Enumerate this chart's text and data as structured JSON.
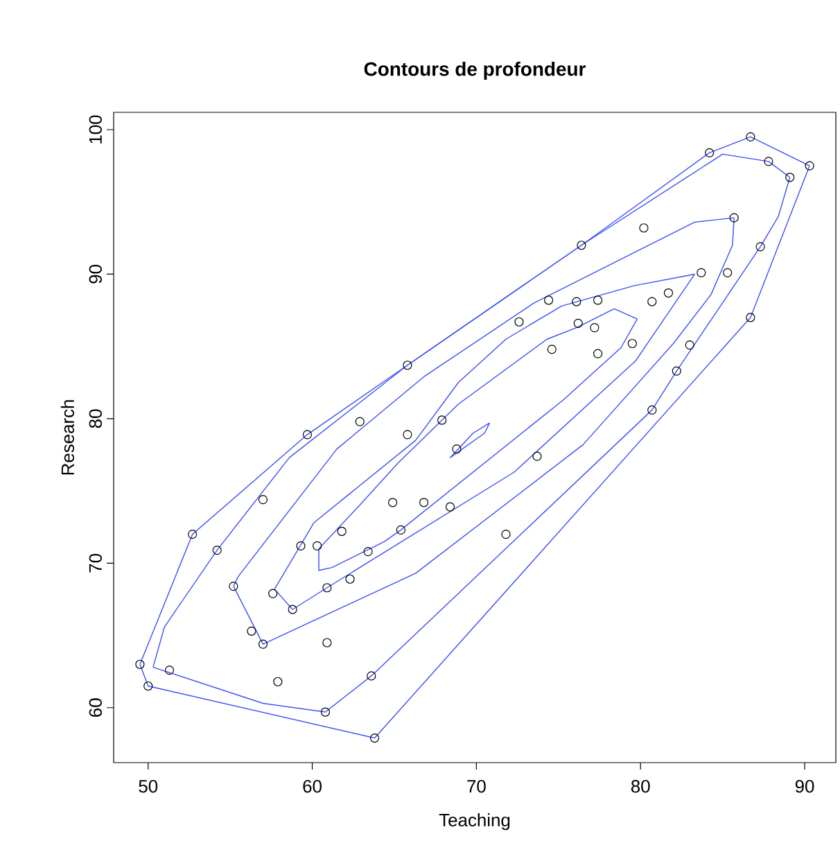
{
  "chart_data": {
    "type": "line",
    "title": "Contours de profondeur",
    "xlabel": "Teaching",
    "ylabel": "Research",
    "xlim": [
      47.9,
      91.9
    ],
    "ylim": [
      56.2,
      101.2
    ],
    "xticks": [
      50,
      60,
      70,
      80,
      90
    ],
    "yticks": [
      60,
      70,
      80,
      90,
      100
    ],
    "grid": false,
    "marker": "none",
    "series": [
      {
        "type": "scatter",
        "marker": "circle",
        "color": "#000000",
        "x": [
          86.7,
          84.2,
          87.8,
          90.3,
          89.1,
          85.7,
          80.2,
          76.4,
          87.3,
          83.7,
          85.3,
          81.7,
          74.4,
          76.1,
          77.4,
          80.7,
          86.7,
          72.6,
          76.2,
          77.2,
          79.5,
          83.0,
          74.6,
          77.4,
          82.2,
          65.8,
          67.9,
          62.9,
          80.7,
          59.7,
          65.8,
          68.8,
          73.7,
          57.0,
          64.9,
          66.8,
          68.4,
          65.4,
          61.8,
          71.8,
          52.7,
          59.3,
          60.3,
          63.4,
          54.2,
          62.3,
          60.9,
          55.2,
          57.6,
          58.8,
          56.3,
          57.0,
          60.9,
          49.5,
          51.3,
          57.9,
          63.6,
          50.0,
          60.8,
          63.8
        ],
        "values": [
          99.5,
          98.4,
          97.8,
          97.5,
          96.7,
          93.9,
          93.2,
          92.0,
          91.9,
          90.1,
          90.1,
          88.7,
          88.2,
          88.1,
          88.2,
          88.1,
          87.0,
          86.7,
          86.6,
          86.3,
          85.2,
          85.1,
          84.8,
          84.5,
          83.3,
          83.7,
          79.9,
          79.8,
          80.6,
          78.9,
          78.9,
          77.9,
          77.4,
          74.4,
          74.2,
          74.2,
          73.9,
          72.3,
          72.2,
          72.0,
          72.0,
          71.2,
          71.2,
          70.8,
          70.9,
          68.9,
          68.3,
          68.4,
          67.9,
          66.8,
          65.3,
          64.4,
          64.5,
          63.0,
          62.6,
          61.8,
          62.2,
          61.5,
          59.7,
          57.9
        ]
      },
      {
        "color": "#3a4ff5",
        "x": [
          49.5,
          52.7,
          59.7,
          65.8,
          76.4,
          84.2,
          86.7,
          90.3
        ],
        "values": [
          63.0,
          72.0,
          78.9,
          83.7,
          92.0,
          98.4,
          99.5,
          97.5
        ]
      },
      {
        "color": "#3a4ff5",
        "x": [
          49.5,
          50.0,
          63.8,
          86.7,
          90.3
        ],
        "values": [
          63.0,
          61.5,
          57.9,
          87.0,
          97.5
        ]
      },
      {
        "color": "#3a4ff5",
        "x": [
          50.3,
          51.0,
          54.2,
          58.6,
          65.8,
          76.4,
          85.0,
          87.8,
          89.1
        ],
        "values": [
          62.8,
          65.6,
          70.9,
          77.3,
          83.7,
          92.0,
          98.3,
          97.8,
          96.7
        ]
      },
      {
        "color": "#3a4ff5",
        "x": [
          50.3,
          57.0,
          60.8,
          63.6,
          80.7,
          82.2,
          87.3,
          88.4,
          89.1
        ],
        "values": [
          62.8,
          60.3,
          59.7,
          62.2,
          80.6,
          83.3,
          91.9,
          94.0,
          96.7
        ]
      },
      {
        "color": "#3a4ff5",
        "x": [
          55.2,
          55.5,
          61.5,
          66.8,
          73.5,
          83.3,
          85.7
        ],
        "values": [
          68.4,
          69.1,
          77.9,
          82.9,
          88.0,
          93.6,
          93.9
        ]
      },
      {
        "color": "#3a4ff5",
        "x": [
          55.2,
          57.0,
          66.3,
          76.5,
          82.0,
          84.3,
          85.6,
          85.7
        ],
        "values": [
          68.4,
          64.4,
          69.3,
          78.2,
          85.2,
          88.6,
          92.0,
          93.9
        ]
      },
      {
        "color": "#3a4ff5",
        "x": [
          57.7,
          60.1,
          66.3,
          68.9,
          71.8,
          75.2,
          79.6,
          83.3
        ],
        "values": [
          68.2,
          72.8,
          78.5,
          82.5,
          85.5,
          87.8,
          89.2,
          90.0
        ]
      },
      {
        "color": "#3a4ff5",
        "x": [
          57.7,
          58.8,
          60.9,
          72.3,
          79.7,
          83.3
        ],
        "values": [
          68.2,
          66.8,
          68.3,
          76.3,
          84.0,
          90.0
        ]
      },
      {
        "color": "#3a4ff5",
        "x": [
          60.4,
          62.8,
          65.2,
          68.9,
          74.3,
          76.1,
          78.4,
          79.8
        ],
        "values": [
          71.0,
          73.9,
          76.9,
          81.0,
          85.5,
          86.3,
          87.6,
          86.9
        ]
      },
      {
        "color": "#3a4ff5",
        "x": [
          60.4,
          60.4,
          61.2,
          64.4,
          65.4,
          75.3,
          78.8,
          79.8
        ],
        "values": [
          71.0,
          69.5,
          69.7,
          71.5,
          72.3,
          81.3,
          84.9,
          86.9
        ]
      },
      {
        "color": "#3a4ff5",
        "x": [
          68.4,
          69.8,
          70.8
        ],
        "values": [
          77.3,
          79.0,
          79.7
        ]
      },
      {
        "color": "#3a4ff5",
        "x": [
          68.4,
          70.5,
          70.8
        ],
        "values": [
          77.3,
          79.0,
          79.7
        ]
      }
    ]
  }
}
